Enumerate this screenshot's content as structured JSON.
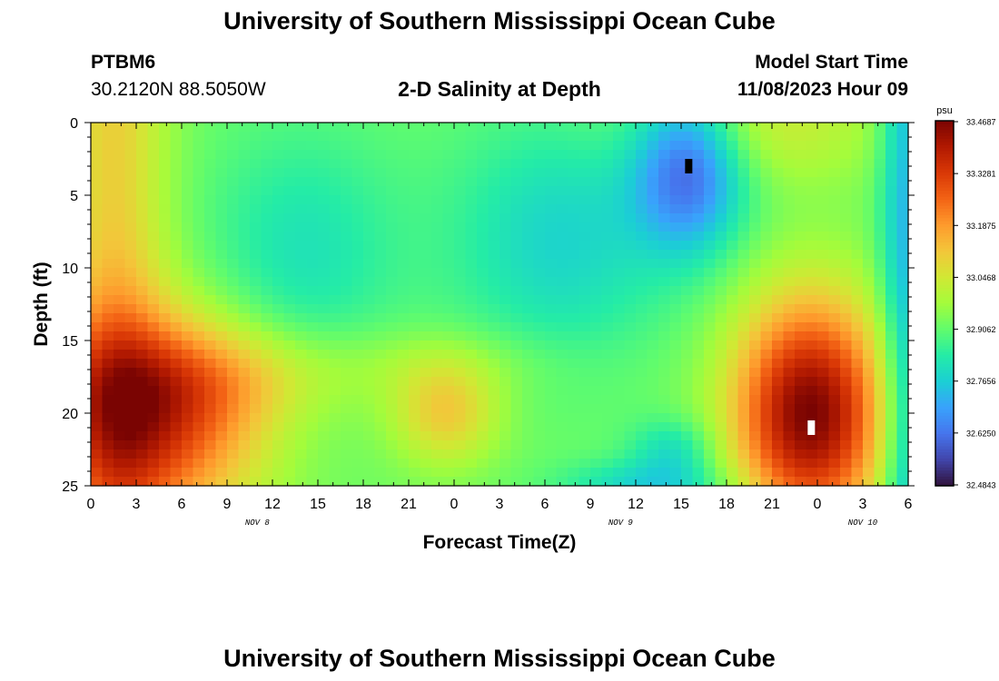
{
  "header": {
    "title": "University of Southern Mississippi Ocean Cube",
    "station_id": "PTBM6",
    "station_coords": "30.2120N  88.5050W",
    "plot_title": "2-D Salinity at Depth",
    "model_start_label": "Model Start Time",
    "model_start_value": "11/08/2023 Hour 09"
  },
  "footer": {
    "title": "University of Southern Mississippi Ocean Cube"
  },
  "chart_data": {
    "type": "heatmap",
    "title": "2-D Salinity at Depth",
    "xlabel": "Forecast Time(Z)",
    "ylabel": "Depth (ft)",
    "x_tick_labels": [
      "0",
      "3",
      "6",
      "9",
      "12",
      "15",
      "18",
      "21",
      "0",
      "3",
      "6",
      "9",
      "12",
      "15",
      "18",
      "21",
      "0",
      "3",
      "6"
    ],
    "x_range_hours": [
      0,
      54
    ],
    "date_labels": [
      {
        "text": "NOV 8",
        "hour": 11
      },
      {
        "text": "NOV 9",
        "hour": 35
      },
      {
        "text": "NOV 10",
        "hour": 51
      }
    ],
    "y_tick_labels": [
      "0",
      "5",
      "10",
      "15",
      "20",
      "25"
    ],
    "y_range_ft": [
      0,
      25
    ],
    "colorbar": {
      "unit": "psu",
      "min": 32.4843,
      "max": 33.4687,
      "tick_labels": [
        "33.4687",
        "33.3281",
        "33.1875",
        "33.0468",
        "32.9062",
        "32.7656",
        "32.6250",
        "32.4843"
      ],
      "colors": [
        "#30123b",
        "#4145ab",
        "#4675ed",
        "#39a2fc",
        "#1bcfd4",
        "#24eca6",
        "#61fc6c",
        "#a4fc3b",
        "#d1e834",
        "#f3c63a",
        "#fe9b2d",
        "#f36315",
        "#d93806",
        "#b11901",
        "#7a0402"
      ]
    },
    "markers": [
      {
        "kind": "min",
        "hour": 39.5,
        "depth_ft": 3.0,
        "color": "#000000"
      },
      {
        "kind": "max",
        "hour": 47.6,
        "depth_ft": 21.0,
        "color": "#ffffff"
      }
    ],
    "features": [
      {
        "kind": "high",
        "center_hour": 2,
        "center_depth_ft": 20,
        "value": 33.38
      },
      {
        "kind": "high",
        "center_hour": 23.5,
        "center_depth_ft": 20,
        "value": 33.12
      },
      {
        "kind": "low",
        "center_hour": 39.5,
        "center_depth_ft": 3,
        "value": 32.5
      },
      {
        "kind": "high",
        "center_hour": 47.5,
        "center_depth_ft": 21,
        "value": 33.47
      },
      {
        "kind": "low",
        "center_hour": 38,
        "center_depth_ft": 25,
        "value": 32.7
      }
    ]
  }
}
